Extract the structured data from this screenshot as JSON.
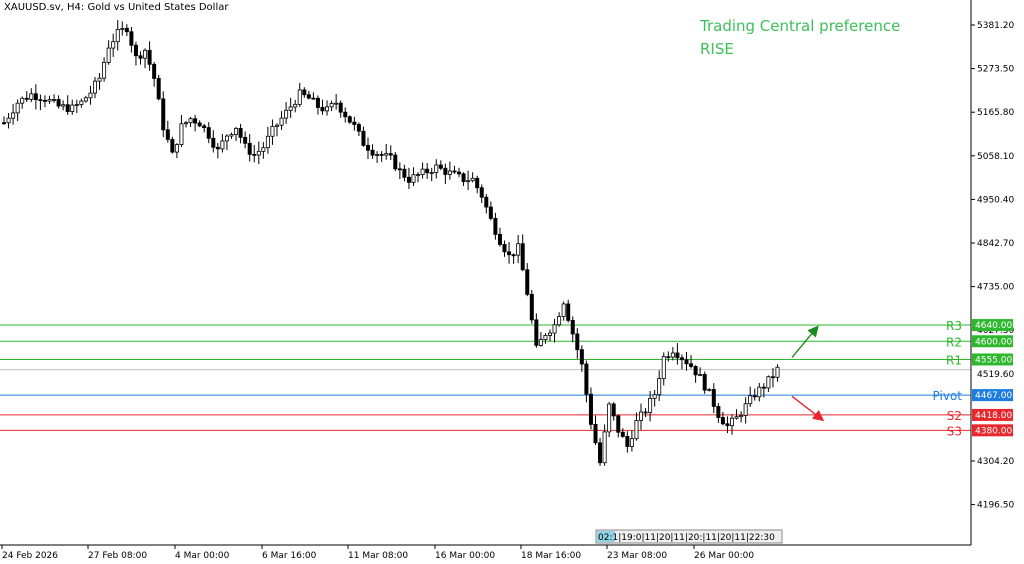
{
  "header": {
    "symbol_title": "XAUUSD.sv, H4:  Gold vs United States Dollar",
    "preference_title": "Trading Central preference",
    "preference_value": "RISE"
  },
  "colors": {
    "resistance": "#2eb82e",
    "support": "#e8282c",
    "pivot": "#1e7de0",
    "bull_arrow": "#1f8a1f",
    "bear_arrow": "#e8282c",
    "pref_text": "#3cc05a"
  },
  "chart_data": {
    "type": "candlestick",
    "ylim": [
      4150,
      5430
    ],
    "y_ticks": [
      "5381.20",
      "5273.50",
      "5165.80",
      "5058.10",
      "4950.40",
      "4842.70",
      "4735.00",
      "4304.20",
      "4196.50"
    ],
    "x_ticks": [
      "24 Feb 2026",
      "27 Feb 08:00",
      "4 Mar 00:00",
      "6 Mar 16:00",
      "11 Mar 08:00",
      "16 Mar 00:00",
      "18 Mar 16:00",
      "23 Mar 08:00",
      "26 Mar 00:00"
    ],
    "x_overlap_labels": "02:1|19:0|11|20|11|20:|11|20|11|22:30",
    "partially_visible_ticks": [
      "4627.30",
      "4519.60"
    ],
    "levels": [
      {
        "name": "R3",
        "value": 4640.0,
        "label": "4640.00",
        "kind": "resistance"
      },
      {
        "name": "R2",
        "value": 4600.0,
        "label": "4600.00",
        "kind": "resistance"
      },
      {
        "name": "R1",
        "value": 4555.0,
        "label": "4555.00",
        "kind": "resistance"
      },
      {
        "name": "Pivot",
        "value": 4467.0,
        "label": "4467.00",
        "kind": "pivot"
      },
      {
        "name": "S2",
        "value": 4418.0,
        "label": "4418.00",
        "kind": "support"
      },
      {
        "name": "S3",
        "value": 4380.0,
        "label": "4380.00",
        "kind": "support"
      }
    ],
    "current_price": 4530,
    "arrows": [
      {
        "direction": "up",
        "from": 4560,
        "to": 4634
      },
      {
        "direction": "down",
        "from": 4464,
        "to": 4407
      }
    ],
    "trend_path": [
      [
        0,
        5140
      ],
      [
        3,
        5190
      ],
      [
        6,
        5210
      ],
      [
        9,
        5200
      ],
      [
        12,
        5180
      ],
      [
        15,
        5175
      ],
      [
        17,
        5190
      ],
      [
        19,
        5215
      ],
      [
        21,
        5250
      ],
      [
        23,
        5330
      ],
      [
        25,
        5360
      ],
      [
        27,
        5375
      ],
      [
        29,
        5300
      ],
      [
        31,
        5320
      ],
      [
        33,
        5250
      ],
      [
        35,
        5130
      ],
      [
        37,
        5060
      ],
      [
        39,
        5130
      ],
      [
        41,
        5150
      ],
      [
        43,
        5140
      ],
      [
        45,
        5110
      ],
      [
        47,
        5070
      ],
      [
        49,
        5110
      ],
      [
        51,
        5130
      ],
      [
        53,
        5080
      ],
      [
        55,
        5060
      ],
      [
        57,
        5080
      ],
      [
        59,
        5120
      ],
      [
        61,
        5150
      ],
      [
        63,
        5180
      ],
      [
        65,
        5210
      ],
      [
        67,
        5200
      ],
      [
        69,
        5180
      ],
      [
        71,
        5170
      ],
      [
        73,
        5190
      ],
      [
        75,
        5160
      ],
      [
        77,
        5130
      ],
      [
        79,
        5090
      ],
      [
        81,
        5070
      ],
      [
        83,
        5060
      ],
      [
        85,
        5050
      ],
      [
        87,
        5020
      ],
      [
        89,
        5000
      ],
      [
        91,
        5010
      ],
      [
        93,
        5020
      ],
      [
        95,
        5030
      ],
      [
        97,
        5020
      ],
      [
        99,
        5010
      ],
      [
        101,
        5000
      ],
      [
        103,
        5000
      ],
      [
        105,
        4960
      ],
      [
        107,
        4900
      ],
      [
        109,
        4850
      ],
      [
        111,
        4810
      ],
      [
        113,
        4830
      ],
      [
        115,
        4720
      ],
      [
        117,
        4580
      ],
      [
        119,
        4620
      ],
      [
        121,
        4640
      ],
      [
        123,
        4700
      ],
      [
        125,
        4620
      ],
      [
        127,
        4540
      ],
      [
        129,
        4400
      ],
      [
        131,
        4300
      ],
      [
        133,
        4440
      ],
      [
        135,
        4380
      ],
      [
        137,
        4340
      ],
      [
        139,
        4400
      ],
      [
        141,
        4430
      ],
      [
        143,
        4470
      ],
      [
        145,
        4560
      ],
      [
        147,
        4580
      ],
      [
        149,
        4560
      ],
      [
        151,
        4540
      ],
      [
        153,
        4510
      ],
      [
        155,
        4470
      ],
      [
        157,
        4420
      ],
      [
        159,
        4390
      ],
      [
        161,
        4410
      ],
      [
        163,
        4440
      ],
      [
        165,
        4470
      ],
      [
        167,
        4490
      ],
      [
        169,
        4515
      ],
      [
        170,
        4530
      ]
    ]
  }
}
